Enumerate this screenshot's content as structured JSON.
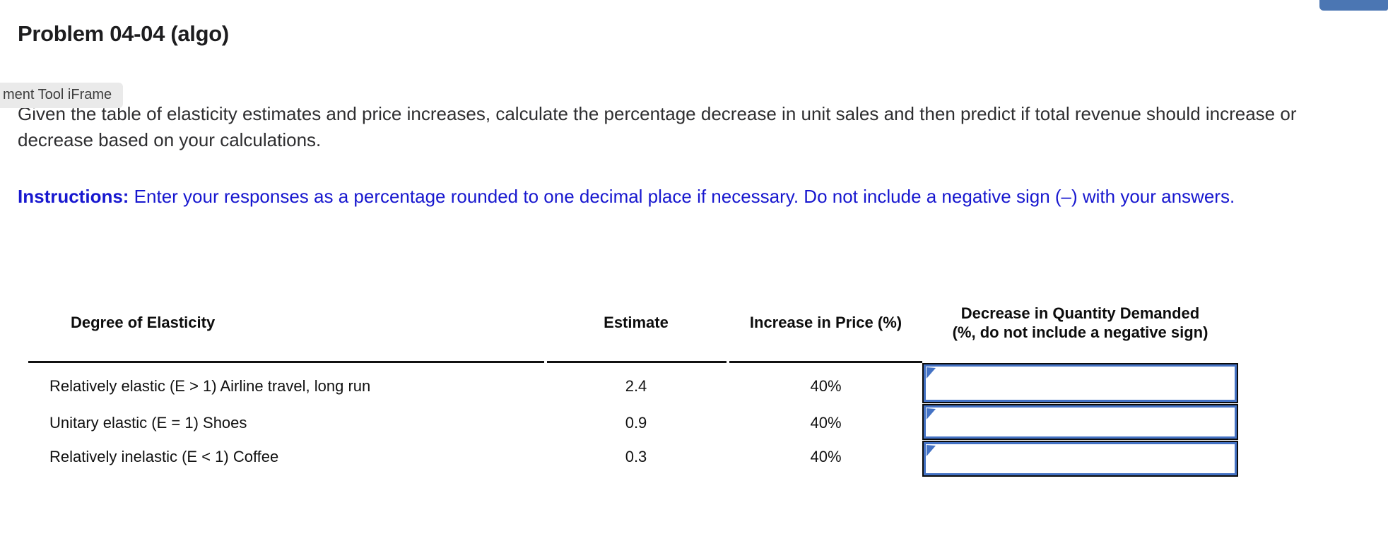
{
  "header": {
    "title": "Problem 04-04 (algo)"
  },
  "top_button": {
    "label": "",
    "color": "#4b76b3"
  },
  "tooltip": {
    "label": "ment Tool iFrame"
  },
  "body": {
    "prompt": "Given the table of elasticity estimates and price increases, calculate the percentage decrease in unit sales and then predict if total revenue should increase or decrease based on your calculations."
  },
  "instructions": {
    "label": "Instructions:",
    "text": " Enter your responses as a percentage rounded to one decimal place if necessary. Do not include a negative sign (–) with your answers.",
    "color": "#1717cf"
  },
  "table": {
    "headers": {
      "degree": "Degree of Elasticity",
      "estimate": "Estimate",
      "price": "Increase in Price (%)",
      "decrease_line1": "Decrease in Quantity Demanded",
      "decrease_line2": "(%, do not include a negative sign)"
    },
    "rows": [
      {
        "label": "Relatively elastic (E > 1) Airline travel, long run",
        "estimate": "2.4",
        "price_increase": "40%",
        "answer": ""
      },
      {
        "label": "Unitary elastic (E = 1) Shoes",
        "estimate": "0.9",
        "price_increase": "40%",
        "answer": ""
      },
      {
        "label": "Relatively inelastic (E < 1) Coffee",
        "estimate": "0.3",
        "price_increase": "40%",
        "answer": ""
      }
    ]
  },
  "colors": {
    "instructions_blue": "#1717cf",
    "button_blue": "#4b76b3",
    "input_border_blue": "#4472c4",
    "input_border_outer": "#0b0b0b",
    "tooltip_bg": "#eaeaea",
    "text_dark": "#2e2e30"
  }
}
